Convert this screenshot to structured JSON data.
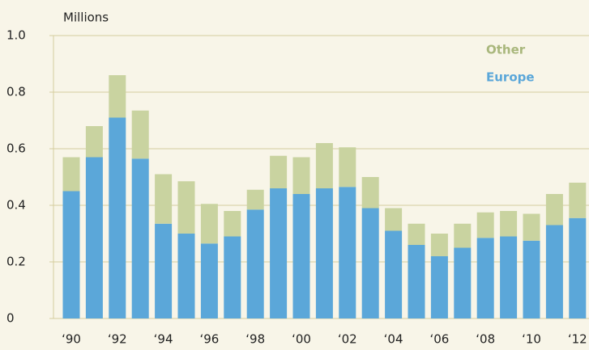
{
  "chart_data": {
    "type": "bar",
    "stacked": true,
    "y_axis_label": "Millions",
    "categories": [
      "‘90",
      null,
      "‘92",
      null,
      "‘94",
      null,
      "‘96",
      null,
      "‘98",
      null,
      "‘00",
      null,
      "‘02",
      null,
      "‘04",
      null,
      "‘06",
      null,
      "‘08",
      null,
      "‘10",
      null,
      "‘12"
    ],
    "series": [
      {
        "name": "Europe",
        "color": "#5ba7d9",
        "values": [
          0.45,
          0.57,
          0.71,
          0.565,
          0.335,
          0.3,
          0.265,
          0.29,
          0.385,
          0.46,
          0.44,
          0.46,
          0.465,
          0.39,
          0.31,
          0.26,
          0.22,
          0.25,
          0.285,
          0.29,
          0.275,
          0.33,
          0.355
        ]
      },
      {
        "name": "Other",
        "color": "#c9d3a0",
        "values": [
          0.12,
          0.11,
          0.15,
          0.17,
          0.175,
          0.185,
          0.14,
          0.09,
          0.07,
          0.115,
          0.13,
          0.16,
          0.14,
          0.11,
          0.08,
          0.075,
          0.08,
          0.085,
          0.09,
          0.09,
          0.095,
          0.11,
          0.125
        ]
      }
    ],
    "ylim": [
      0,
      1
    ],
    "yticks": [
      0,
      0.2,
      0.4,
      0.6,
      0.8,
      {
        "value": 1,
        "label": "1.0"
      }
    ],
    "grid": true
  }
}
